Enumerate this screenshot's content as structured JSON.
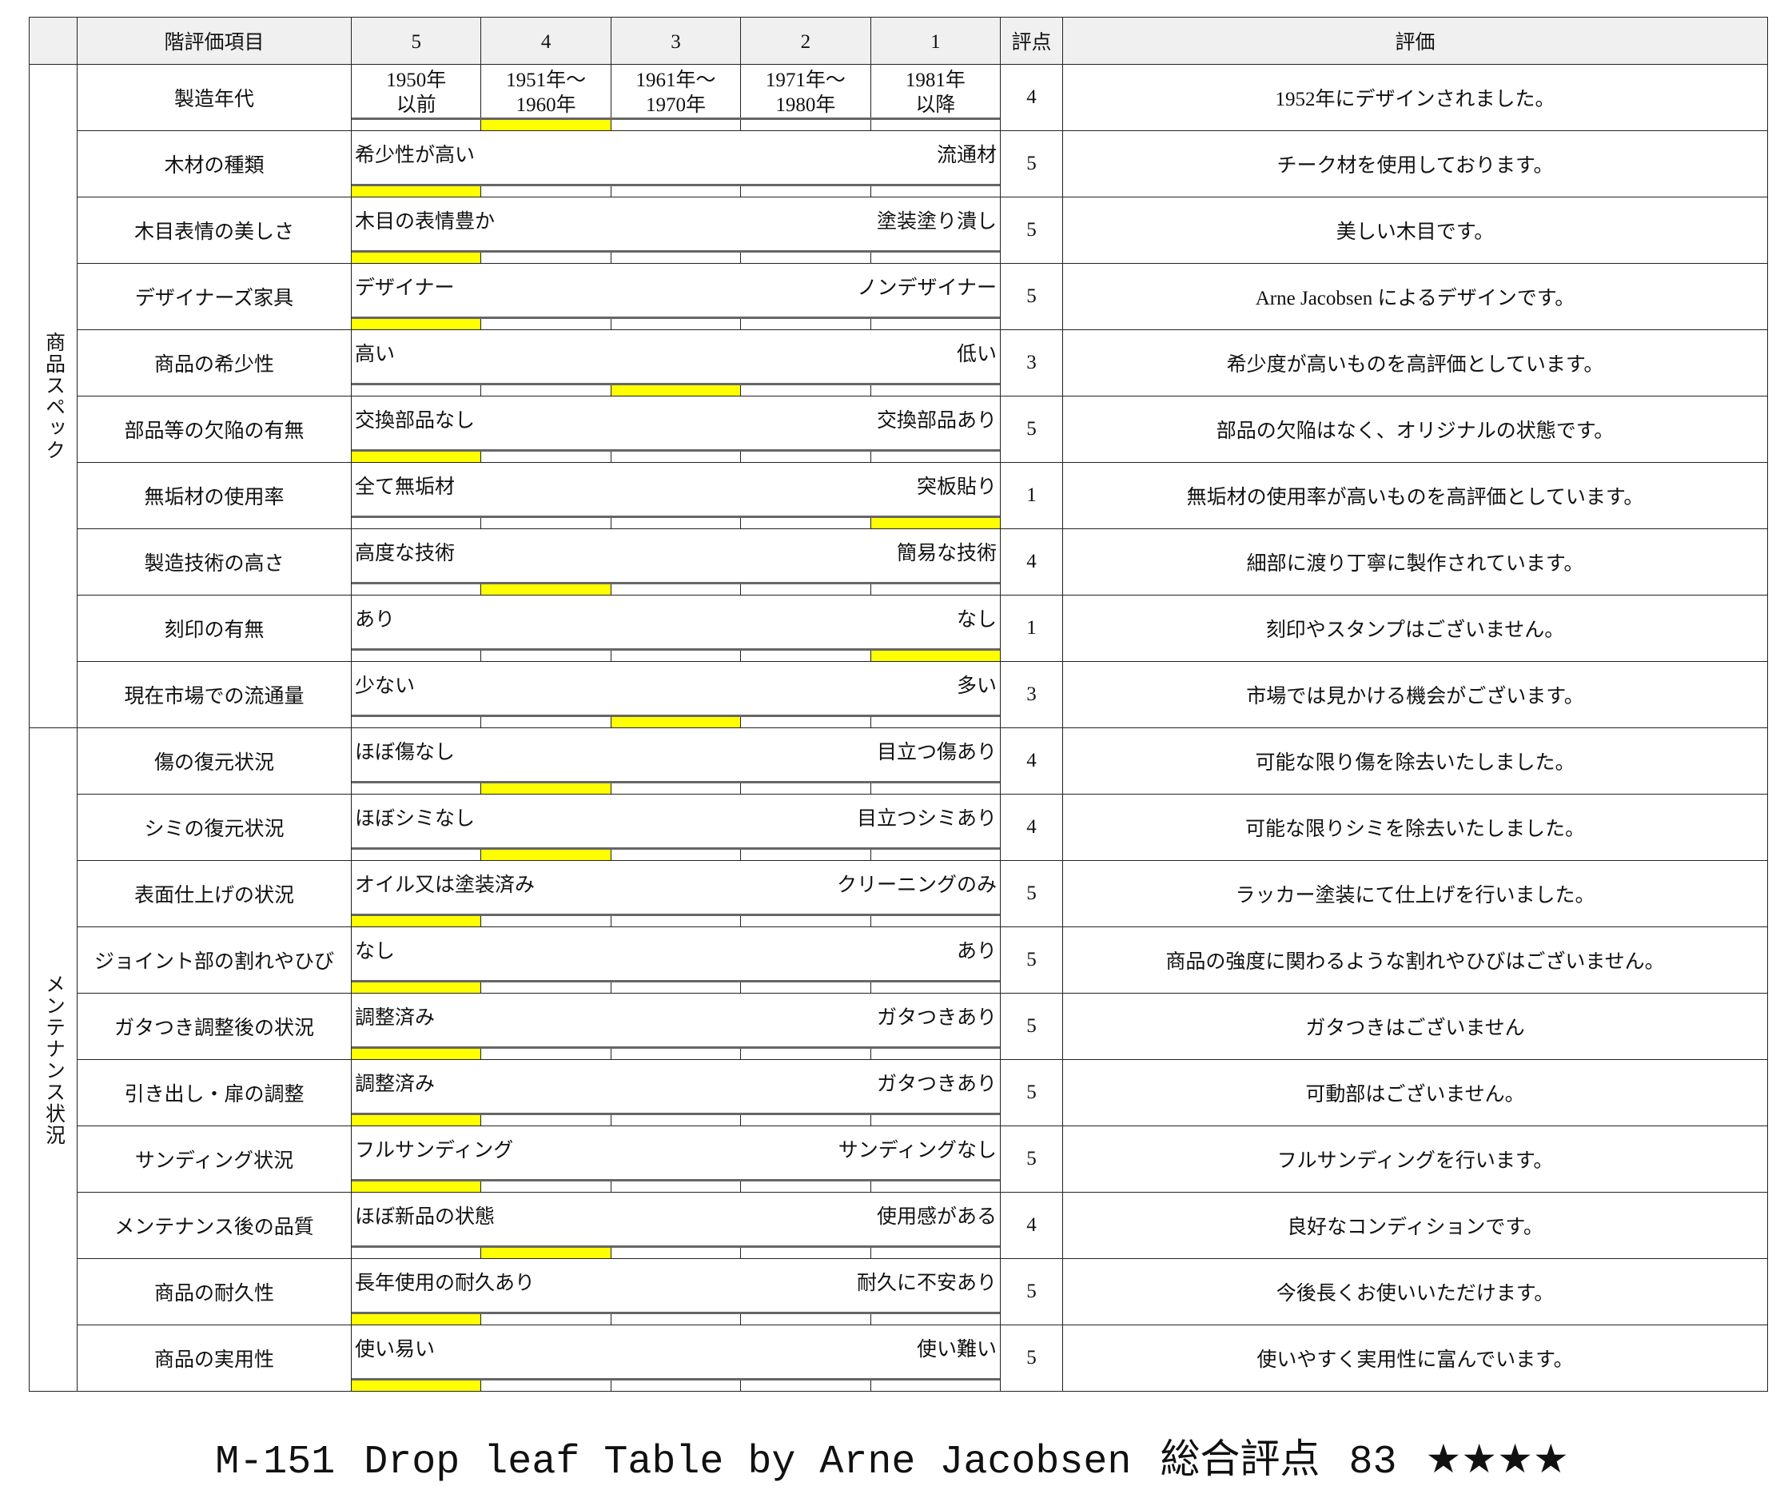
{
  "header": {
    "item": "階評価項目",
    "levels": [
      "5",
      "4",
      "3",
      "2",
      "1"
    ],
    "score": "評点",
    "comment": "評価"
  },
  "highlight_color": "#ffff00",
  "groups": [
    {
      "label": "商品スペック",
      "rows": [
        {
          "item": "製造年代",
          "cols": [
            "1950年\n以前",
            "1951年～\n1960年",
            "1961年～\n1970年",
            "1971年～\n1980年",
            "1981年\n以降"
          ],
          "score": "4",
          "comment": "1952年にデザインされました。"
        },
        {
          "item": "木材の種類",
          "left": "希少性が高い",
          "right": "流通材",
          "score": "5",
          "comment": "チーク材を使用しております。"
        },
        {
          "item": "木目表情の美しさ",
          "left": "木目の表情豊か",
          "right": "塗装塗り潰し",
          "score": "5",
          "comment": "美しい木目です。"
        },
        {
          "item": "デザイナーズ家具",
          "left": "デザイナー",
          "right": "ノンデザイナー",
          "score": "5",
          "comment": "Arne Jacobsen によるデザインです。"
        },
        {
          "item": "商品の希少性",
          "left": "高い",
          "right": "低い",
          "score": "3",
          "comment": "希少度が高いものを高評価としています。"
        },
        {
          "item": "部品等の欠陥の有無",
          "left": "交換部品なし",
          "right": "交換部品あり",
          "score": "5",
          "comment": "部品の欠陥はなく、オリジナルの状態です。"
        },
        {
          "item": "無垢材の使用率",
          "left": "全て無垢材",
          "right": "突板貼り",
          "score": "1",
          "comment": "無垢材の使用率が高いものを高評価としています。"
        },
        {
          "item": "製造技術の高さ",
          "left": "高度な技術",
          "right": "簡易な技術",
          "score": "4",
          "comment": "細部に渡り丁寧に製作されています。"
        },
        {
          "item": "刻印の有無",
          "left": "あり",
          "right": "なし",
          "score": "1",
          "comment": "刻印やスタンプはございません。"
        },
        {
          "item": "現在市場での流通量",
          "left": "少ない",
          "right": "多い",
          "score": "3",
          "comment": "市場では見かける機会がございます。"
        }
      ]
    },
    {
      "label": "メンテナンス状況",
      "rows": [
        {
          "item": "傷の復元状況",
          "left": "ほぼ傷なし",
          "right": "目立つ傷あり",
          "score": "4",
          "comment": "可能な限り傷を除去いたしました。"
        },
        {
          "item": "シミの復元状況",
          "left": "ほぼシミなし",
          "right": "目立つシミあり",
          "score": "4",
          "comment": "可能な限りシミを除去いたしました。"
        },
        {
          "item": "表面仕上げの状況",
          "left": "オイル又は塗装済み",
          "right": "クリーニングのみ",
          "score": "5",
          "comment": "ラッカー塗装にて仕上げを行いました。"
        },
        {
          "item": "ジョイント部の割れやひび",
          "left": "なし",
          "right": "あり",
          "score": "5",
          "comment": "商品の強度に関わるような割れやひびはございません。"
        },
        {
          "item": "ガタつき調整後の状況",
          "left": "調整済み",
          "right": "ガタつきあり",
          "score": "5",
          "comment": "ガタつきはございません"
        },
        {
          "item": "引き出し・扉の調整",
          "left": "調整済み",
          "right": "ガタつきあり",
          "score": "5",
          "comment": "可動部はございません。"
        },
        {
          "item": "サンディング状況",
          "left": "フルサンディング",
          "right": "サンディングなし",
          "score": "5",
          "comment": "フルサンディングを行います。"
        },
        {
          "item": "メンテナンス後の品質",
          "left": "ほぼ新品の状態",
          "right": "使用感がある",
          "score": "4",
          "comment": "良好なコンディションです。"
        },
        {
          "item": "商品の耐久性",
          "left": "長年使用の耐久あり",
          "right": "耐久に不安あり",
          "score": "5",
          "comment": "今後長くお使いいただけます。"
        },
        {
          "item": "商品の実用性",
          "left": "使い易い",
          "right": "使い難い",
          "score": "5",
          "comment": "使いやすく実用性に富んでいます。"
        }
      ]
    }
  ],
  "footer": {
    "code": "M-151",
    "title": "Drop leaf Table by Arne Jacobsen",
    "total_label": "総合評点",
    "total": "83",
    "stars": "★★★★",
    "star_rating": 4
  }
}
